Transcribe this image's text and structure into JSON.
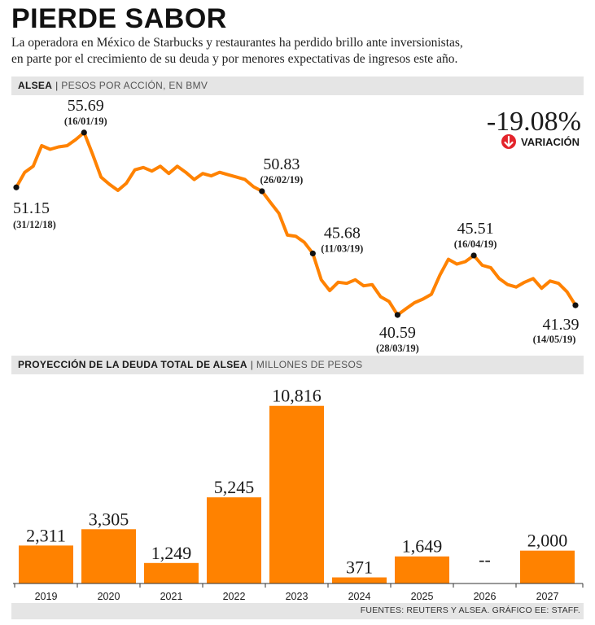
{
  "header": {
    "title": "PIERDE SABOR",
    "subtitle_line1": "La operadora en México de Starbucks y restaurantes ha perdido brillo ante inversionistas,",
    "subtitle_line2": "en parte por el crecimiento de su deuda y por menores expectativas de ingresos este año."
  },
  "section1": {
    "label": "ALSEA",
    "sublabel": "PESOS POR ACCIÓN, EN BMV"
  },
  "section2": {
    "label": "PROYECCIÓN DE LA DEUDA TOTAL DE ALSEA",
    "sublabel": "MILLONES DE PESOS"
  },
  "variation": {
    "value": "-19.08%",
    "label": "VARIACIÓN"
  },
  "source": "FUENTES: REUTERS Y ALSEA. GRÁFICO EE: STAFF.",
  "colors": {
    "accent": "#ff8200",
    "arrow": "#e3242b",
    "bar_bg": "#e5e5e5"
  },
  "chart_data": [
    {
      "type": "line",
      "title": "ALSEA",
      "ylabel": "PESOS POR ACCIÓN, EN BMV",
      "ylim": [
        38.5,
        57.5
      ],
      "series": [
        {
          "name": "ALSEA",
          "values": [
            51.15,
            52.4,
            52.9,
            54.6,
            54.3,
            54.5,
            54.6,
            55.1,
            55.69,
            53.9,
            52.0,
            51.4,
            50.9,
            51.5,
            52.6,
            52.8,
            52.5,
            52.9,
            52.3,
            52.9,
            52.4,
            51.8,
            52.3,
            52.1,
            52.4,
            52.2,
            52.0,
            51.8,
            51.2,
            50.83,
            49.9,
            49.0,
            47.2,
            47.1,
            46.6,
            45.68,
            43.5,
            42.6,
            43.3,
            43.2,
            43.5,
            43.0,
            43.1,
            42.1,
            41.7,
            40.59,
            41.1,
            41.6,
            41.9,
            42.3,
            43.9,
            45.2,
            44.8,
            45.0,
            45.51,
            44.7,
            44.5,
            43.6,
            43.1,
            42.9,
            43.3,
            43.6,
            42.8,
            43.4,
            43.2,
            42.5,
            41.39
          ]
        }
      ],
      "annotations": [
        {
          "index": 0,
          "value": "51.15",
          "date": "(31/12/18)"
        },
        {
          "index": 8,
          "value": "55.69",
          "date": "(16/01/19)"
        },
        {
          "index": 29,
          "value": "50.83",
          "date": "(26/02/19)"
        },
        {
          "index": 35,
          "value": "45.68",
          "date": "(11/03/19)"
        },
        {
          "index": 45,
          "value": "40.59",
          "date": "(28/03/19)"
        },
        {
          "index": 54,
          "value": "45.51",
          "date": "(16/04/19)"
        },
        {
          "index": 66,
          "value": "41.39",
          "date": "(14/05/19)"
        }
      ]
    },
    {
      "type": "bar",
      "title": "PROYECCIÓN DE LA DEUDA TOTAL DE ALSEA",
      "ylabel": "MILLONES DE PESOS",
      "ylim": [
        0,
        11000
      ],
      "categories": [
        "2019",
        "2020",
        "2021",
        "2022",
        "2023",
        "2024",
        "2025",
        "2026",
        "2027"
      ],
      "values": [
        2311,
        3305,
        1249,
        5245,
        10816,
        371,
        1649,
        null,
        2000
      ],
      "labels": [
        "2,311",
        "3,305",
        "1,249",
        "5,245",
        "10,816",
        "371",
        "1,649",
        "--",
        "2,000"
      ]
    }
  ]
}
